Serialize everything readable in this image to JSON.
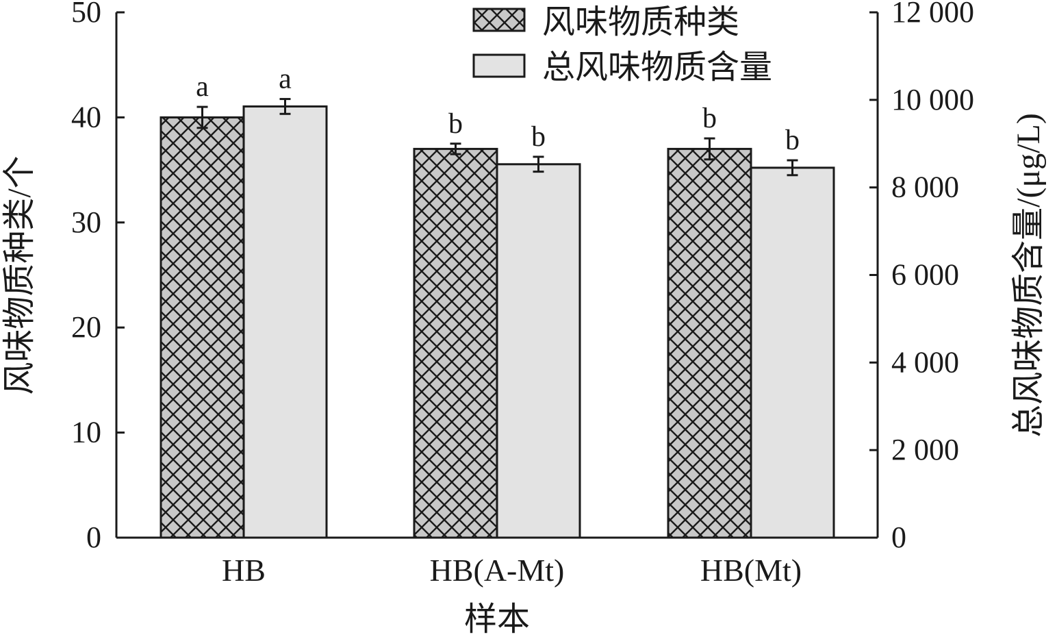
{
  "chart_data": {
    "type": "bar",
    "categories": [
      "HB",
      "HB(A-Mt)",
      "HB(Mt)"
    ],
    "xlabel": "样本",
    "ylabel": "风味物质种类/个",
    "ylabel_right": "总风味物质含量/(μg/L)",
    "left_axis": {
      "ylim": [
        0,
        50
      ],
      "ticks": [
        0,
        10,
        20,
        30,
        40,
        50
      ],
      "tick_labels": [
        "0",
        "10",
        "20",
        "30",
        "40",
        "50"
      ]
    },
    "right_axis": {
      "ylim": [
        0,
        12000
      ],
      "ticks": [
        0,
        2000,
        4000,
        6000,
        8000,
        10000,
        12000
      ],
      "tick_labels": [
        "0",
        "2 000",
        "4 000",
        "6 000",
        "8 000",
        "10 000",
        "12 000"
      ]
    },
    "series": [
      {
        "name": "风味物质种类",
        "axis": "left",
        "pattern": "crosshatch",
        "color": "#c8c8c8",
        "values": [
          40,
          37,
          37
        ],
        "errors": [
          1.0,
          0.5,
          1.0
        ],
        "sig_labels": [
          "a",
          "b",
          "b"
        ]
      },
      {
        "name": "总风味物质含量",
        "axis": "right",
        "pattern": "solid",
        "color": "#e3e3e3",
        "values": [
          9850,
          8530,
          8450
        ],
        "errors": [
          170,
          170,
          170
        ],
        "sig_labels": [
          "a",
          "b",
          "b"
        ]
      }
    ],
    "legend_position": "top-right",
    "grid": false
  }
}
